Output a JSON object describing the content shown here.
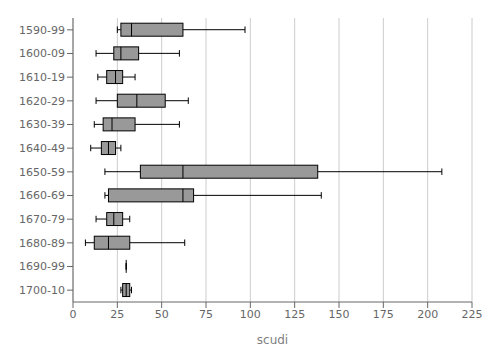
{
  "chart_data": {
    "type": "box",
    "orientation": "horizontal",
    "categories": [
      "1590-99",
      "1600-09",
      "1610-19",
      "1620-29",
      "1630-39",
      "1640-49",
      "1650-59",
      "1660-69",
      "1670-79",
      "1680-89",
      "1690-99",
      "1700-10"
    ],
    "boxes": [
      {
        "whislo": 25,
        "q1": 27,
        "med": 33,
        "q3": 62,
        "whishi": 97
      },
      {
        "whislo": 13,
        "q1": 23,
        "med": 27,
        "q3": 37,
        "whishi": 60
      },
      {
        "whislo": 14,
        "q1": 19,
        "med": 24,
        "q3": 28,
        "whishi": 35
      },
      {
        "whislo": 13,
        "q1": 25,
        "med": 36,
        "q3": 52,
        "whishi": 65
      },
      {
        "whislo": 12,
        "q1": 17,
        "med": 22,
        "q3": 35,
        "whishi": 60
      },
      {
        "whislo": 10,
        "q1": 16,
        "med": 20,
        "q3": 24,
        "whishi": 27
      },
      {
        "whislo": 18,
        "q1": 38,
        "med": 62,
        "q3": 138,
        "whishi": 208
      },
      {
        "whislo": 18,
        "q1": 20,
        "med": 62,
        "q3": 68,
        "whishi": 140
      },
      {
        "whislo": 13,
        "q1": 19,
        "med": 23,
        "q3": 28,
        "whishi": 32
      },
      {
        "whislo": 7,
        "q1": 12,
        "med": 20,
        "q3": 32,
        "whishi": 63
      },
      {
        "whislo": 30,
        "q1": 30,
        "med": 30,
        "q3": 30,
        "whishi": 30
      },
      {
        "whislo": 27,
        "q1": 28,
        "med": 30,
        "q3": 32,
        "whishi": 33
      }
    ],
    "color": "#999999",
    "xlabel": "scudi",
    "xlim": [
      0,
      225
    ],
    "xticks": [
      0,
      25,
      50,
      75,
      100,
      125,
      150,
      175,
      200,
      225
    ],
    "grid": true
  }
}
